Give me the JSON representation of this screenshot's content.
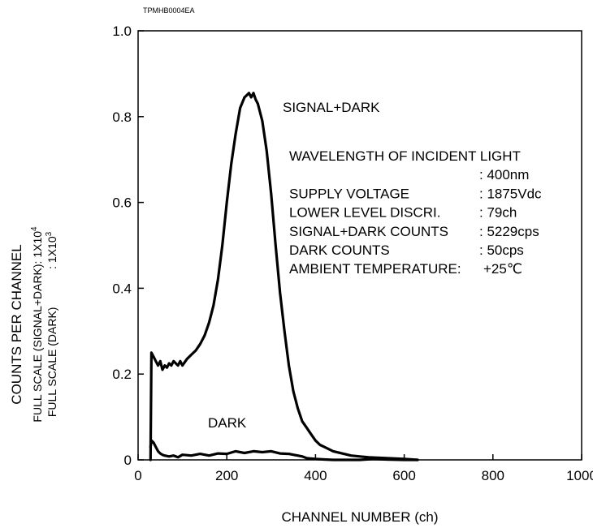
{
  "chart_data": {
    "type": "line",
    "code": "TPMHB0004EA",
    "title": "",
    "xlabel": "CHANNEL NUMBER (ch)",
    "ylabel": "COUNTS PER CHANNEL",
    "ylabel_sub1_prefix": "FULL SCALE (SIGNAL+DARK): 1X10",
    "ylabel_sub1_exp": "4",
    "ylabel_sub2_prefix": "FULL SCALE (DARK)            : 1X10",
    "ylabel_sub2_exp": "3",
    "xlim": [
      0,
      1000
    ],
    "ylim": [
      0,
      1.0
    ],
    "xticks": [
      0,
      200,
      400,
      600,
      800,
      1000
    ],
    "yticks": [
      0,
      0.2,
      0.4,
      0.6,
      0.8,
      1.0
    ],
    "ytick_labels": [
      "0",
      "0.2",
      "0.4",
      "0.6",
      "0.8",
      "1.0"
    ],
    "grid": false,
    "series": [
      {
        "name": "SIGNAL+DARK",
        "x": [
          28,
          30,
          35,
          40,
          45,
          50,
          55,
          60,
          65,
          70,
          75,
          80,
          85,
          90,
          95,
          100,
          110,
          120,
          130,
          140,
          150,
          160,
          170,
          180,
          190,
          200,
          210,
          220,
          230,
          240,
          245,
          250,
          255,
          260,
          265,
          270,
          280,
          290,
          300,
          310,
          320,
          330,
          340,
          350,
          360,
          370,
          380,
          390,
          400,
          410,
          420,
          440,
          460,
          480,
          500,
          520,
          540,
          560,
          580,
          600,
          630
        ],
        "y": [
          0.0,
          0.25,
          0.24,
          0.23,
          0.22,
          0.23,
          0.21,
          0.22,
          0.215,
          0.225,
          0.22,
          0.23,
          0.225,
          0.22,
          0.23,
          0.22,
          0.235,
          0.245,
          0.255,
          0.27,
          0.29,
          0.32,
          0.36,
          0.42,
          0.5,
          0.6,
          0.69,
          0.76,
          0.82,
          0.845,
          0.85,
          0.855,
          0.845,
          0.855,
          0.84,
          0.83,
          0.79,
          0.72,
          0.62,
          0.5,
          0.39,
          0.3,
          0.22,
          0.16,
          0.12,
          0.09,
          0.075,
          0.06,
          0.045,
          0.035,
          0.03,
          0.02,
          0.015,
          0.01,
          0.008,
          0.006,
          0.005,
          0.004,
          0.003,
          0.002,
          0.0
        ]
      },
      {
        "name": "DARK",
        "x": [
          28,
          30,
          35,
          40,
          45,
          50,
          55,
          60,
          70,
          80,
          90,
          100,
          120,
          140,
          160,
          180,
          200,
          220,
          240,
          260,
          280,
          300,
          320,
          340,
          350,
          360,
          370,
          380,
          400,
          420,
          440,
          460,
          480,
          500,
          530,
          560,
          600,
          630
        ],
        "y": [
          0.03,
          0.045,
          0.04,
          0.03,
          0.02,
          0.015,
          0.012,
          0.01,
          0.008,
          0.01,
          0.006,
          0.012,
          0.01,
          0.014,
          0.01,
          0.015,
          0.014,
          0.02,
          0.016,
          0.02,
          0.018,
          0.02,
          0.015,
          0.014,
          0.012,
          0.01,
          0.008,
          0.004,
          0.002,
          0.001,
          0.0,
          0.0,
          0.0,
          0.0,
          0.002,
          0.001,
          0.0,
          0.0
        ]
      }
    ],
    "labels": {
      "signal_dark_label": "SIGNAL+DARK",
      "dark_label": "DARK"
    },
    "conditions": [
      {
        "name": "WAVELENGTH OF INCIDENT LIGHT",
        "value": ""
      },
      {
        "name": "",
        "value": ": 400nm"
      },
      {
        "name": "SUPPLY VOLTAGE",
        "value": ": 1875Vdc"
      },
      {
        "name": "LOWER LEVEL DISCRI.",
        "value": ": 79ch"
      },
      {
        "name": "SIGNAL+DARK COUNTS",
        "value": ": 5229cps"
      },
      {
        "name": "DARK COUNTS",
        "value": ": 50cps"
      },
      {
        "name": "AMBIENT TEMPERATURE:",
        "value": "+25℃"
      }
    ]
  }
}
